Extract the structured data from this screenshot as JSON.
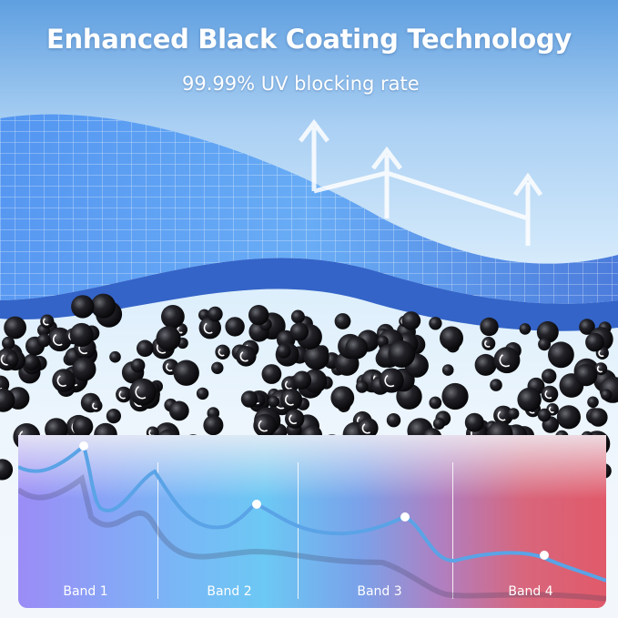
{
  "header": {
    "title": "Enhanced Black Coating Technology",
    "subtitle": "99.99% UV blocking rate"
  },
  "chart": {
    "bands": [
      "Band 1",
      "Band 2",
      "Band 3",
      "Band 4"
    ],
    "line_color": "#5aa3e6",
    "band_colors": [
      "#9b8cf6",
      "#6cc8f4",
      "#7aa2ea",
      "#e15a6a"
    ]
  },
  "colors": {
    "coating_layer": "#3f7fe0",
    "particles": "#1a1a1f"
  }
}
